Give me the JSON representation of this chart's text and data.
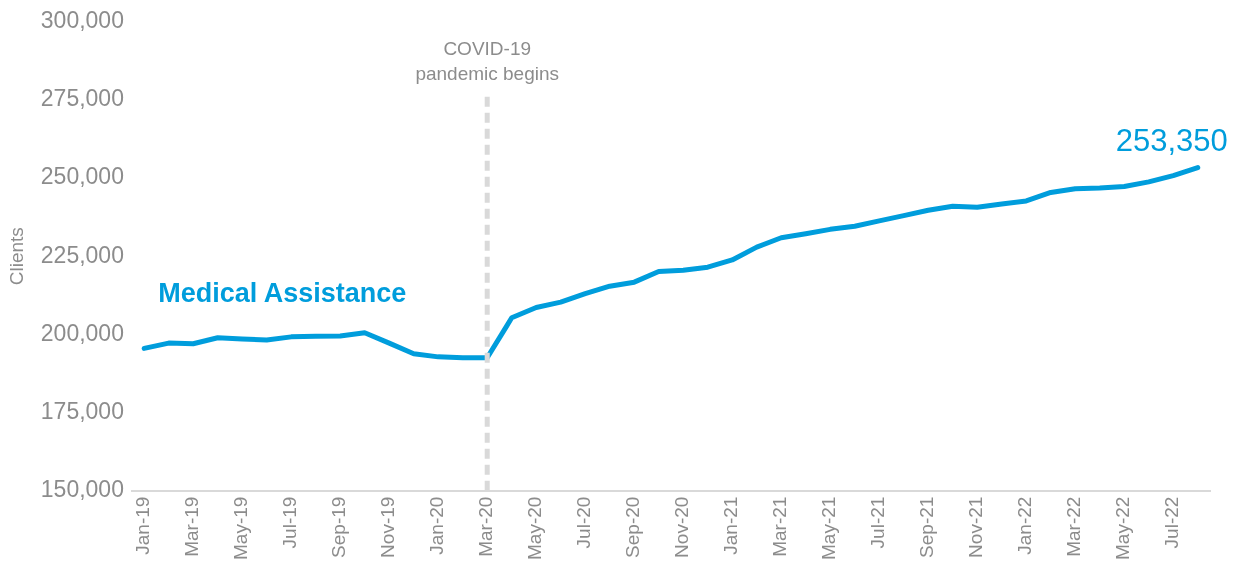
{
  "chart_data": {
    "type": "line",
    "ylabel": "Clients",
    "categories": [
      "Jan-19",
      null,
      "Mar-19",
      null,
      "May-19",
      null,
      "Jul-19",
      null,
      "Sep-19",
      null,
      "Nov-19",
      null,
      "Jan-20",
      null,
      "Mar-20",
      null,
      "May-20",
      null,
      "Jul-20",
      null,
      "Sep-20",
      null,
      "Nov-20",
      null,
      "Jan-21",
      null,
      "Mar-21",
      null,
      "May-21",
      null,
      "Jul-21",
      null,
      "Sep-21",
      null,
      "Nov-21",
      null,
      "Jan-22",
      null,
      "Mar-22",
      null,
      "May-22",
      null,
      "Jul-22",
      null
    ],
    "series": [
      {
        "name": "Medical Assistance",
        "color": "#009ddc",
        "values": [
          195500,
          197200,
          197000,
          198900,
          198500,
          198200,
          199200,
          199400,
          199500,
          200500,
          197200,
          193800,
          192800,
          192500,
          192500,
          205300,
          208600,
          210300,
          213000,
          215400,
          216700,
          220100,
          220500,
          221500,
          223800,
          227900,
          230900,
          232200,
          233600,
          234600,
          236300,
          238000,
          239700,
          241000,
          240700,
          241700,
          242700,
          245400,
          246600,
          246800,
          247300,
          248800,
          250800,
          253350
        ],
        "value_labels": [
          null,
          null,
          null,
          null,
          null,
          null,
          null,
          null,
          null,
          null,
          null,
          null,
          null,
          null,
          null,
          null,
          null,
          null,
          null,
          null,
          null,
          null,
          null,
          null,
          null,
          null,
          null,
          null,
          null,
          null,
          null,
          null,
          null,
          null,
          null,
          null,
          null,
          null,
          null,
          null,
          null,
          null,
          null,
          "253,350"
        ]
      }
    ],
    "ylim": [
      150000,
      300000
    ],
    "yticks": [
      {
        "value": 150000,
        "label": "150,000"
      },
      {
        "value": 175000,
        "label": "175,000"
      },
      {
        "value": 200000,
        "label": "200,000"
      },
      {
        "value": 225000,
        "label": "225,000"
      },
      {
        "value": 250000,
        "label": "250,000"
      },
      {
        "value": 275000,
        "label": "275,000"
      },
      {
        "value": 300000,
        "label": "300,000"
      }
    ],
    "grid": false,
    "legend": false,
    "marker": "none",
    "line_style": "solid",
    "ref_lines": [
      {
        "axis": "x",
        "value": "Mar-20",
        "label": "COVID-19 pandemic begins",
        "color": "#d9d9d9",
        "line_style": "dashed"
      }
    ]
  }
}
